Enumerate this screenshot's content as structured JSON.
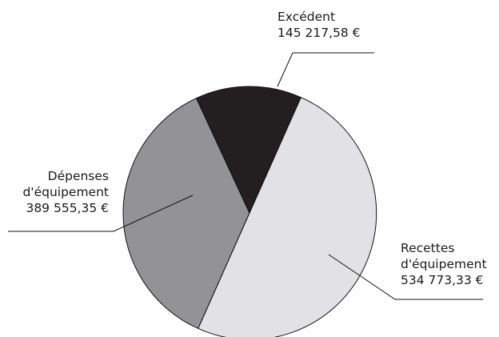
{
  "chart_data": {
    "type": "pie",
    "title": "",
    "slices": [
      {
        "label": "Recettes d'équipement",
        "label_lines": [
          "Recettes",
          "d'équipement"
        ],
        "value": 534773.33,
        "value_label": "534 773,33 €",
        "color": "#e2e2e4"
      },
      {
        "label": "Dépenses d'équipement",
        "label_lines": [
          "Dépenses",
          "d'équipement"
        ],
        "value": 389555.35,
        "value_label": "389 555,35 €",
        "color": "#939396"
      },
      {
        "label": "Excédent",
        "label_lines": [
          "Excédent"
        ],
        "value": 145217.58,
        "value_label": "145 217,58 €",
        "color": "#231f20"
      }
    ],
    "legend": "none"
  }
}
